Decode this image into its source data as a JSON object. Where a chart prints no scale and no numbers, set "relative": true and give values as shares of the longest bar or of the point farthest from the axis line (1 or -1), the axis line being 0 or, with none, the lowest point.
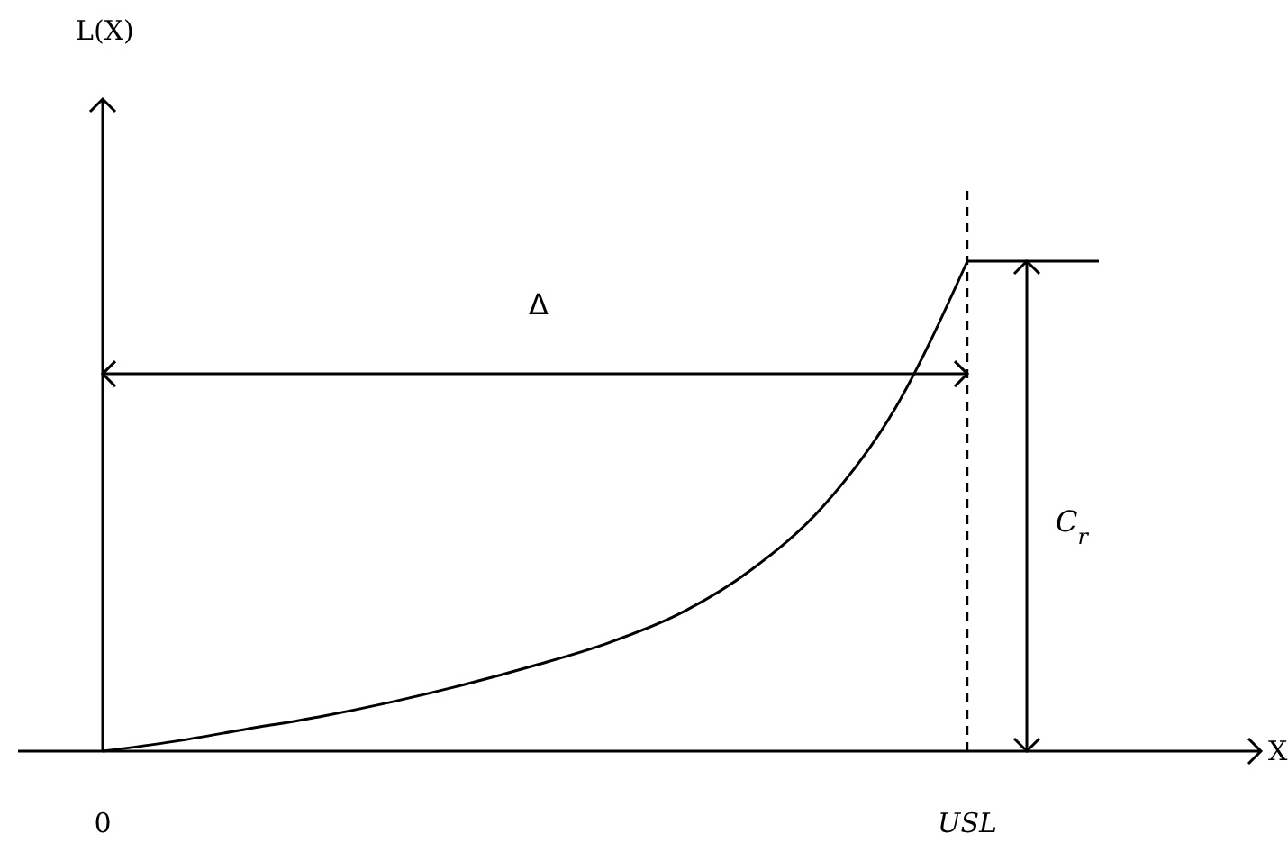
{
  "chart_data": {
    "type": "line",
    "relative": true,
    "categories": [
      "0",
      null,
      null,
      null,
      null,
      null,
      null,
      null,
      null,
      null,
      null,
      null,
      "USL"
    ],
    "series": [
      {
        "color": "#000000",
        "values": [
          0,
          0.02,
          0.045,
          0.07,
          0.1,
          0.135,
          0.175,
          0.22,
          0.28,
          0.37,
          0.5,
          0.7,
          1
        ]
      }
    ],
    "ref_lines": [
      {
        "axis": "x",
        "value": "USL",
        "line_style": "dashed",
        "color": "#000000"
      },
      {
        "axis": "y",
        "value": 0.77,
        "label": "Δ",
        "line_style": "solid",
        "color": "#000000"
      }
    ],
    "annotations": [
      "L(X)",
      "X",
      "C$_{r}$"
    ],
    "marker": "none",
    "line_style": "solid"
  }
}
